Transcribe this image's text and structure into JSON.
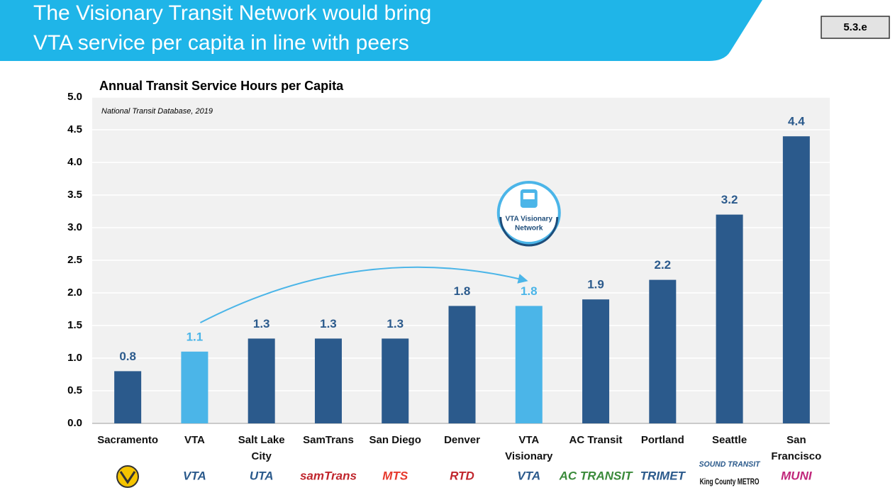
{
  "header": {
    "title_lines": [
      "The Visionary Transit Network would bring",
      "VTA service per capita in line with peers"
    ],
    "badge": "5.3.e"
  },
  "chart_data": {
    "type": "bar",
    "title": "Annual Transit Service Hours per Capita",
    "subtitle": "National Transit Database, 2019",
    "categories": [
      "Sacramento",
      "VTA",
      "Salt Lake City",
      "SamTrans",
      "San Diego",
      "Denver",
      "VTA Visionary",
      "AC Transit",
      "Portland",
      "Seattle",
      "San Francisco"
    ],
    "values": [
      0.8,
      1.1,
      1.3,
      1.3,
      1.3,
      1.8,
      1.8,
      1.9,
      2.2,
      3.2,
      4.4
    ],
    "colors": [
      "#2b5a8c",
      "#4bb5e8",
      "#2b5a8c",
      "#2b5a8c",
      "#2b5a8c",
      "#2b5a8c",
      "#4bb5e8",
      "#2b5a8c",
      "#2b5a8c",
      "#2b5a8c",
      "#2b5a8c"
    ],
    "ylim": [
      0,
      5
    ],
    "yticks": [
      {
        "value": 0,
        "label": "0.0"
      },
      {
        "value": 0.5,
        "label": "0.5"
      },
      {
        "value": 1,
        "label": "1.0"
      },
      {
        "value": 1.5,
        "label": "1.5"
      },
      {
        "value": 2,
        "label": "2.0"
      },
      {
        "value": 2.5,
        "label": "2.5"
      },
      {
        "value": 3,
        "label": "3.0"
      },
      {
        "value": 3.5,
        "label": "3.5"
      },
      {
        "value": 4,
        "label": "4.0"
      },
      {
        "value": 4.5,
        "label": "4.5"
      },
      {
        "value": 5,
        "label": "5.0"
      }
    ],
    "grid": true,
    "callout_lines": [
      "VTA Visionary",
      "Network"
    ],
    "logos": [
      "VTA",
      "UTA",
      "samTrans",
      "MTS",
      "RTD",
      "VTA",
      "AC TRANSIT",
      "TRIMET",
      "SOUND TRANSIT",
      "MUNI"
    ],
    "extra_logo": "King County METRO"
  }
}
